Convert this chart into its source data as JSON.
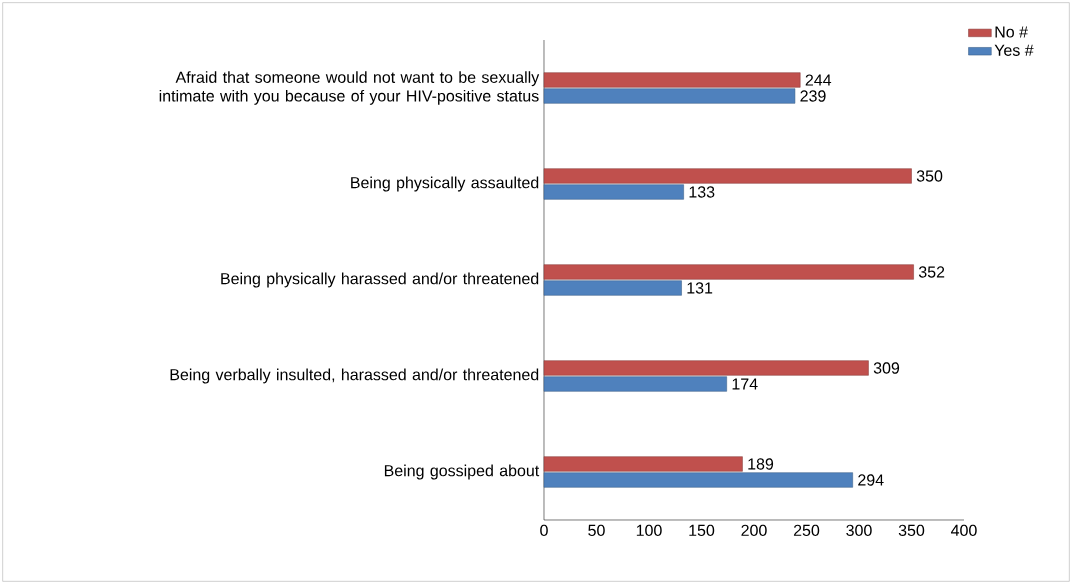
{
  "chart_data": {
    "type": "bar",
    "orientation": "horizontal",
    "categories": [
      "Afraid that someone would not want to be sexually intimate with you because of your HIV-positive status",
      "Being physically assaulted",
      "Being physically harassed and/or threatened",
      "Being verbally insulted, harassed and/or threatened",
      "Being gossiped about"
    ],
    "series": [
      {
        "name": "No #",
        "color": "#c0504d",
        "values": [
          244,
          350,
          352,
          309,
          189
        ]
      },
      {
        "name": "Yes #",
        "color": "#4f81bd",
        "values": [
          239,
          133,
          131,
          174,
          294
        ]
      }
    ],
    "xlim": [
      0,
      400
    ],
    "xticks": [
      0,
      50,
      100,
      150,
      200,
      250,
      300,
      350,
      400
    ],
    "data_labels": true,
    "legend": "top right",
    "grid": false
  }
}
